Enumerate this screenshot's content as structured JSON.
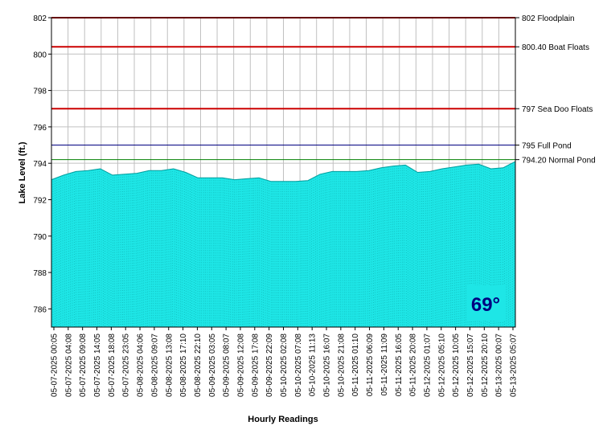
{
  "chart_data": {
    "type": "area",
    "ylabel": "Lake Level (ft.)",
    "xlabel": "Hourly Readings",
    "ylim": [
      785,
      802
    ],
    "yticks": [
      786,
      788,
      790,
      792,
      794,
      796,
      798,
      800,
      802
    ],
    "grid": true,
    "fill_color": "#1ee6e6",
    "x_tick_labels": [
      "05-07-2025 00:05",
      "05-07-2025 04:08",
      "05-07-2025 09:08",
      "05-07-2025 14:05",
      "05-07-2025 18:08",
      "05-07-2025 23:05",
      "05-08-2025 04:06",
      "05-08-2025 09:07",
      "05-08-2025 13:08",
      "05-08-2025 17:10",
      "05-08-2025 22:10",
      "05-09-2025 03:05",
      "05-09-2025 08:07",
      "05-09-2025 12:08",
      "05-09-2025 17:08",
      "05-09-2025 22:09",
      "05-10-2025 02:08",
      "05-10-2025 07:08",
      "05-10-2025 11:13",
      "05-10-2025 16:07",
      "05-10-2025 21:08",
      "05-11-2025 01:10",
      "05-11-2025 06:09",
      "05-11-2025 11:09",
      "05-11-2025 16:05",
      "05-11-2025 20:08",
      "05-12-2025 01:07",
      "05-12-2025 05:10",
      "05-12-2025 10:05",
      "05-12-2025 15:07",
      "05-12-2025 20:10",
      "05-13-2025 00:07",
      "05-13-2025 05:07"
    ],
    "series": [
      {
        "values": [
          793.1,
          793.35,
          793.55,
          793.6,
          793.7,
          793.35,
          793.4,
          793.45,
          793.6,
          793.6,
          793.7,
          793.5,
          793.2,
          793.2,
          793.2,
          793.1,
          793.15,
          793.2,
          793.0,
          793.0,
          793.0,
          793.05,
          793.4,
          793.55,
          793.55,
          793.55,
          793.6,
          793.75,
          793.85,
          793.9,
          793.5,
          793.55,
          793.7,
          793.8,
          793.9,
          793.95,
          793.7,
          793.75,
          794.1
        ]
      }
    ],
    "reference_lines": [
      {
        "value": 802,
        "label": "802 Floodplain",
        "color": "#cc0000"
      },
      {
        "value": 800.4,
        "label": "800.40 Boat Floats",
        "color": "#cc0000"
      },
      {
        "value": 797,
        "label": "797 Sea Doo Floats",
        "color": "#cc0000"
      },
      {
        "value": 795,
        "label": "795 Full Pond",
        "color": "#000080"
      },
      {
        "value": 794.2,
        "label": "794.20 Normal Pond",
        "color": "#008000"
      }
    ]
  },
  "temperature": "69°",
  "temperature_badge_color": "#1ee6e6"
}
